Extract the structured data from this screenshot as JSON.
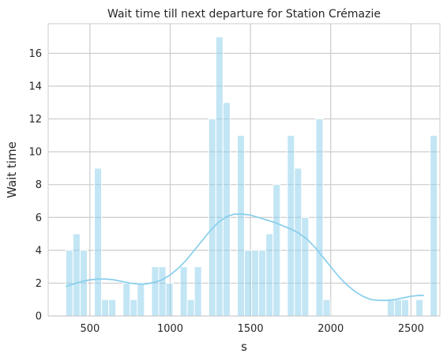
{
  "chart_data": {
    "type": "bar",
    "title": "Wait time till next departure for Station Crémazie",
    "xlabel": "s",
    "ylabel": "Wait time",
    "xlim": [
      240,
      2680
    ],
    "ylim": [
      0,
      17.8
    ],
    "xticks": [
      500,
      1000,
      1500,
      2000,
      2500
    ],
    "yticks": [
      0,
      2,
      4,
      6,
      8,
      10,
      12,
      14,
      16
    ],
    "grid": true,
    "colors": {
      "bar": "#87ceeb",
      "kde": "#87ceeb",
      "grid": "#cccccc",
      "axes_edge": "#cccccc"
    },
    "bin_start": 350,
    "bin_width": 44.5,
    "values": [
      4,
      5,
      4,
      0,
      9,
      1,
      1,
      0,
      2,
      1,
      2,
      0,
      3,
      3,
      2,
      0,
      3,
      1,
      3,
      0,
      12,
      17,
      13,
      0,
      11,
      4,
      4,
      4,
      5,
      8,
      0,
      11,
      9,
      6,
      0,
      12,
      1,
      0,
      0,
      0,
      0,
      0,
      0,
      0,
      0,
      1,
      1,
      1,
      0,
      1,
      0,
      11
    ],
    "kde": {
      "x": [
        350,
        400,
        450,
        500,
        550,
        600,
        650,
        700,
        750,
        800,
        850,
        900,
        950,
        1000,
        1050,
        1100,
        1150,
        1200,
        1250,
        1300,
        1350,
        1400,
        1450,
        1500,
        1550,
        1600,
        1650,
        1700,
        1750,
        1800,
        1850,
        1900,
        1950,
        2000,
        2050,
        2100,
        2150,
        2200,
        2250,
        2300,
        2350,
        2400,
        2450,
        2500,
        2550,
        2580
      ],
      "y": [
        1.8,
        1.95,
        2.1,
        2.2,
        2.25,
        2.25,
        2.2,
        2.1,
        2.0,
        1.95,
        1.95,
        2.05,
        2.2,
        2.5,
        2.9,
        3.4,
        4.0,
        4.6,
        5.2,
        5.7,
        6.05,
        6.2,
        6.2,
        6.15,
        6.0,
        5.85,
        5.7,
        5.5,
        5.3,
        5.05,
        4.7,
        4.2,
        3.6,
        3.0,
        2.4,
        1.9,
        1.5,
        1.2,
        1.0,
        0.95,
        0.95,
        1.0,
        1.1,
        1.2,
        1.25,
        1.25
      ]
    }
  }
}
